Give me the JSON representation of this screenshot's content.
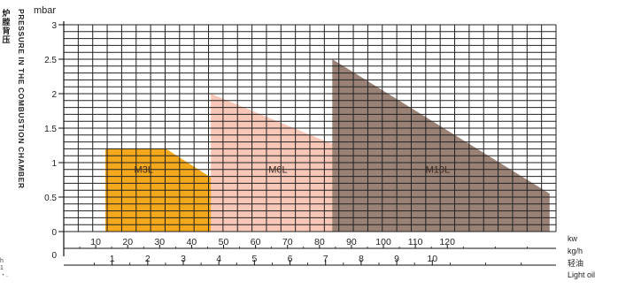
{
  "y_unit": "mbar",
  "y_title_cn": "炉膛背压",
  "y_title_en": "PRESSURE IN THE COMBUSTION CHAMBER",
  "x_units": [
    "kw",
    "kg/h",
    "轻油",
    "Light oil"
  ],
  "edge_text": "h\n1\n・.",
  "chart_data": {
    "type": "area",
    "ylim": [
      0,
      3
    ],
    "y_ticks": [
      0,
      0.5,
      1,
      1.5,
      2,
      2.5,
      3
    ],
    "kw_ticks": [
      10,
      20,
      30,
      40,
      50,
      60,
      70,
      80,
      90,
      100,
      110,
      120
    ],
    "kgh_ticks": [
      1,
      2,
      3,
      4,
      5,
      6,
      7,
      8,
      9,
      10
    ],
    "kw_axis_range": [
      0,
      154
    ],
    "grid": true,
    "series": [
      {
        "name": "M3L",
        "color": "#f4a81c",
        "kw": [
          13,
          13,
          32,
          54,
          54
        ],
        "pressure": [
          0,
          1.2,
          1.2,
          0.55,
          0
        ]
      },
      {
        "name": "M6L",
        "color": "#f8c7b8",
        "kw": [
          46,
          46,
          98,
          98
        ],
        "pressure": [
          0,
          2.0,
          1.0,
          0
        ]
      },
      {
        "name": "M10L",
        "color": "#9a8175",
        "kw": [
          84,
          84,
          152,
          152
        ],
        "pressure": [
          0,
          2.5,
          0.55,
          0
        ]
      }
    ]
  }
}
